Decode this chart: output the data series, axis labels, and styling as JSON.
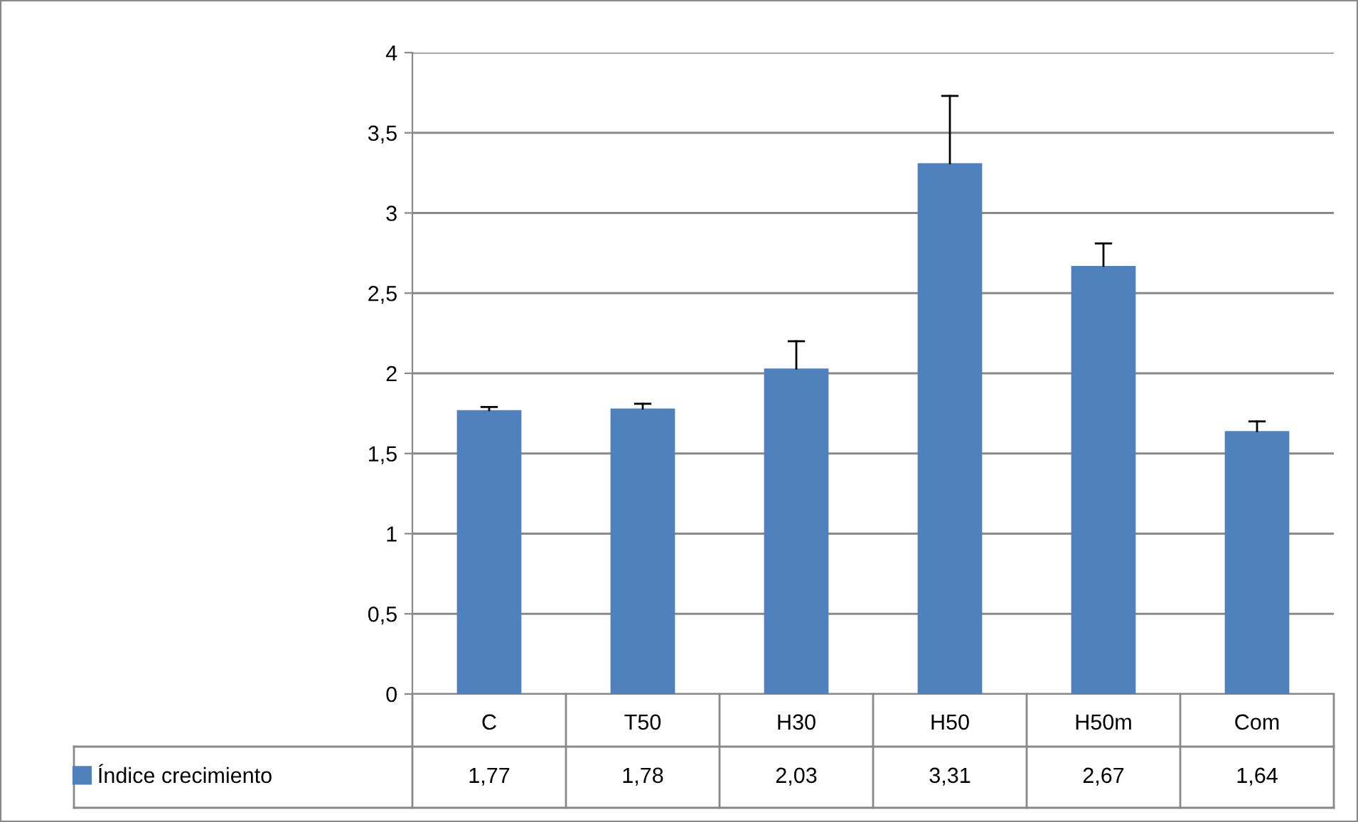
{
  "chart_data": {
    "type": "bar",
    "categories": [
      "C",
      "T50",
      "H30",
      "H50",
      "H50m",
      "Com"
    ],
    "series": [
      {
        "name": "Índice crecimiento",
        "color": "#4f81bd",
        "values": [
          1.77,
          1.78,
          2.03,
          3.31,
          2.67,
          1.64
        ],
        "value_labels": [
          "1,77",
          "1,78",
          "2,03",
          "3,31",
          "2,67",
          "1,64"
        ],
        "errors": [
          [
            1.77,
            1.79
          ],
          [
            1.78,
            1.81
          ],
          [
            2.03,
            2.2
          ],
          [
            3.31,
            3.73
          ],
          [
            2.67,
            2.81
          ],
          [
            1.64,
            1.7
          ]
        ]
      }
    ],
    "ylim": [
      0,
      4
    ],
    "yticks": [
      0,
      {
        "value": 0.5,
        "label": "0,5"
      },
      1,
      {
        "value": 1.5,
        "label": "1,5"
      },
      2,
      {
        "value": 2.5,
        "label": "2,5"
      },
      3,
      {
        "value": 3.5,
        "label": "3,5"
      },
      4
    ],
    "grid": "y",
    "legend": "bottom"
  }
}
